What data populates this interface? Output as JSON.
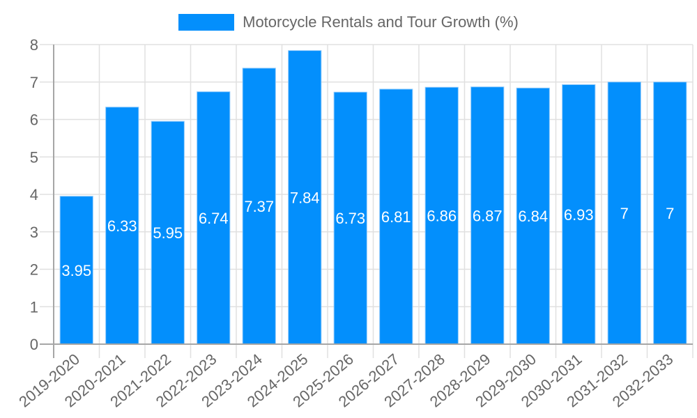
{
  "chart_data": {
    "type": "bar",
    "title": "",
    "legend": [
      {
        "label": "Motorcycle Rentals and Tour Growth (%)",
        "color": "#038ffc"
      }
    ],
    "legend_position": "top",
    "xlabel": "",
    "ylabel": "",
    "ylim": [
      0,
      8
    ],
    "yticks": [
      0,
      1,
      2,
      3,
      4,
      5,
      6,
      7,
      8
    ],
    "grid": true,
    "categories": [
      "2019-2020",
      "2020-2021",
      "2021-2022",
      "2022-2023",
      "2023-2024",
      "2024-2025",
      "2025-2026",
      "2026-2027",
      "2027-2028",
      "2028-2029",
      "2029-2030",
      "2030-2031",
      "2031-2032",
      "2032-2033"
    ],
    "series": [
      {
        "name": "Motorcycle Rentals and Tour Growth (%)",
        "color": "#038ffc",
        "values": [
          3.95,
          6.33,
          5.95,
          6.74,
          7.37,
          7.84,
          6.73,
          6.81,
          6.86,
          6.87,
          6.84,
          6.93,
          7,
          7
        ],
        "labels": [
          "3.95",
          "6.33",
          "5.95",
          "6.74",
          "7.37",
          "7.84",
          "6.73",
          "6.81",
          "6.86",
          "6.87",
          "6.84",
          "6.93",
          "7",
          "7"
        ]
      }
    ]
  },
  "legend": {
    "label": "Motorcycle Rentals and Tour Growth (%)",
    "color": "#038ffc"
  }
}
